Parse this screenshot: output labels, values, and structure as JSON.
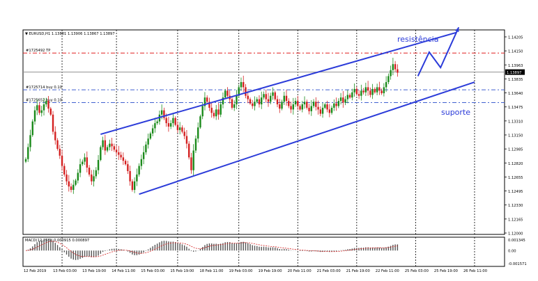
{
  "chart_data": {
    "type": "candlestick",
    "symbol_header": "▼ EURUSD,H1  1.13881 1.13906 1.13867 1.13897",
    "last_price": "1.13897",
    "price_axis": {
      "min": 1.12,
      "max": 1.1439,
      "ticks": [
        "1.14205",
        "1.14150",
        "1.13963",
        "1.13835",
        "1.13640",
        "1.13475",
        "1.13310",
        "1.13150",
        "1.12985",
        "1.12820",
        "1.12655",
        "1.12495",
        "1.12330",
        "1.12165",
        "1.12000"
      ]
    },
    "time_axis": {
      "ticks": [
        "12 Feb 2019",
        "13 Feb 03:00",
        "13 Feb 19:00",
        "14 Feb 11:00",
        "15 Feb 03:00",
        "15 Feb 19:00",
        "18 Feb 11:00",
        "19 Feb 03:00",
        "19 Feb 19:00",
        "20 Feb 11:00",
        "21 Feb 03:00",
        "21 Feb 19:00",
        "22 Feb 11:00",
        "25 Feb 03:00",
        "25 Feb 19:00",
        "26 Feb 11:00"
      ]
    },
    "horizontal_lines": [
      {
        "label": "#1725492 TP",
        "price": 1.1412,
        "color": "#e02020"
      },
      {
        "label": "#1725714 buy 0.10",
        "price": 1.1369,
        "color": "#4060d0"
      },
      {
        "label": "#1725652 buy 0.10",
        "price": 1.1354,
        "color": "#4060d0"
      },
      {
        "label": "",
        "price": 1.13897,
        "color": "#909090"
      }
    ],
    "annotations": {
      "resistance": "resistência",
      "support": "suporte"
    },
    "channel": {
      "color": "#2b3bd9",
      "upper": [
        {
          "bar": 33,
          "price": 1.1317
        },
        {
          "bar": 190,
          "price": 1.1436
        }
      ],
      "lower": [
        {
          "bar": 50,
          "price": 1.1247
        },
        {
          "bar": 198,
          "price": 1.1378
        }
      ]
    },
    "forecast_arrow": [
      {
        "bar": 173,
        "price": 1.1385
      },
      {
        "bar": 178,
        "price": 1.1413
      },
      {
        "bar": 183,
        "price": 1.1395
      },
      {
        "bar": 191,
        "price": 1.1442
      }
    ],
    "close_series": [
      1.1288,
      1.1302,
      1.1316,
      1.1332,
      1.1345,
      1.1351,
      1.1342,
      1.1345,
      1.1352,
      1.1356,
      1.1347,
      1.134,
      1.132,
      1.131,
      1.13,
      1.1292,
      1.128,
      1.127,
      1.1262,
      1.1256,
      1.1252,
      1.1258,
      1.1263,
      1.1272,
      1.1282,
      1.1285,
      1.129,
      1.1278,
      1.127,
      1.1262,
      1.1268,
      1.1275,
      1.1287,
      1.1302,
      1.131,
      1.1298,
      1.1302,
      1.1306,
      1.1303,
      1.1299,
      1.1296,
      1.1293,
      1.129,
      1.1286,
      1.1282,
      1.1274,
      1.1262,
      1.1252,
      1.1262,
      1.127,
      1.128,
      1.1288,
      1.1296,
      1.1305,
      1.1312,
      1.1318,
      1.1324,
      1.133,
      1.1332,
      1.134,
      1.1345,
      1.1336,
      1.133,
      1.1326,
      1.133,
      1.1336,
      1.1328,
      1.1322,
      1.1325,
      1.132,
      1.1315,
      1.1306,
      1.129,
      1.1275,
      1.1298,
      1.1312,
      1.1325,
      1.1338,
      1.135,
      1.136,
      1.1355,
      1.1348,
      1.1342,
      1.1338,
      1.1346,
      1.134,
      1.1352,
      1.136,
      1.1368,
      1.1362,
      1.1358,
      1.1348,
      1.1352,
      1.1362,
      1.1372,
      1.1378,
      1.1372,
      1.1362,
      1.1358,
      1.1353,
      1.135,
      1.1355,
      1.1358,
      1.1352,
      1.136,
      1.1364,
      1.1358,
      1.1355,
      1.1362,
      1.1366,
      1.1358,
      1.1352,
      1.1347,
      1.1355,
      1.1362,
      1.1356,
      1.135,
      1.1346,
      1.1352,
      1.1356,
      1.135,
      1.1346,
      1.1352,
      1.1355,
      1.1348,
      1.1344,
      1.135,
      1.1355,
      1.1349,
      1.1346,
      1.1341,
      1.1348,
      1.1352,
      1.1346,
      1.1342,
      1.1348,
      1.1353,
      1.135,
      1.1356,
      1.136,
      1.1354,
      1.1358,
      1.1363,
      1.136,
      1.1366,
      1.137,
      1.1364,
      1.1362,
      1.1368,
      1.1366,
      1.1372,
      1.1368,
      1.1363,
      1.137,
      1.1366,
      1.1372,
      1.1368,
      1.1365,
      1.1372,
      1.1378,
      1.1385,
      1.1392,
      1.1399,
      1.1393,
      1.1389
    ],
    "macd_indicator": {
      "label": "MACD(12,26,9) 0.000915 0.000897",
      "scale_ticks": [
        "0.001345",
        "0.00",
        "-0.001571"
      ],
      "range": [
        -0.0016,
        0.00135
      ]
    }
  }
}
